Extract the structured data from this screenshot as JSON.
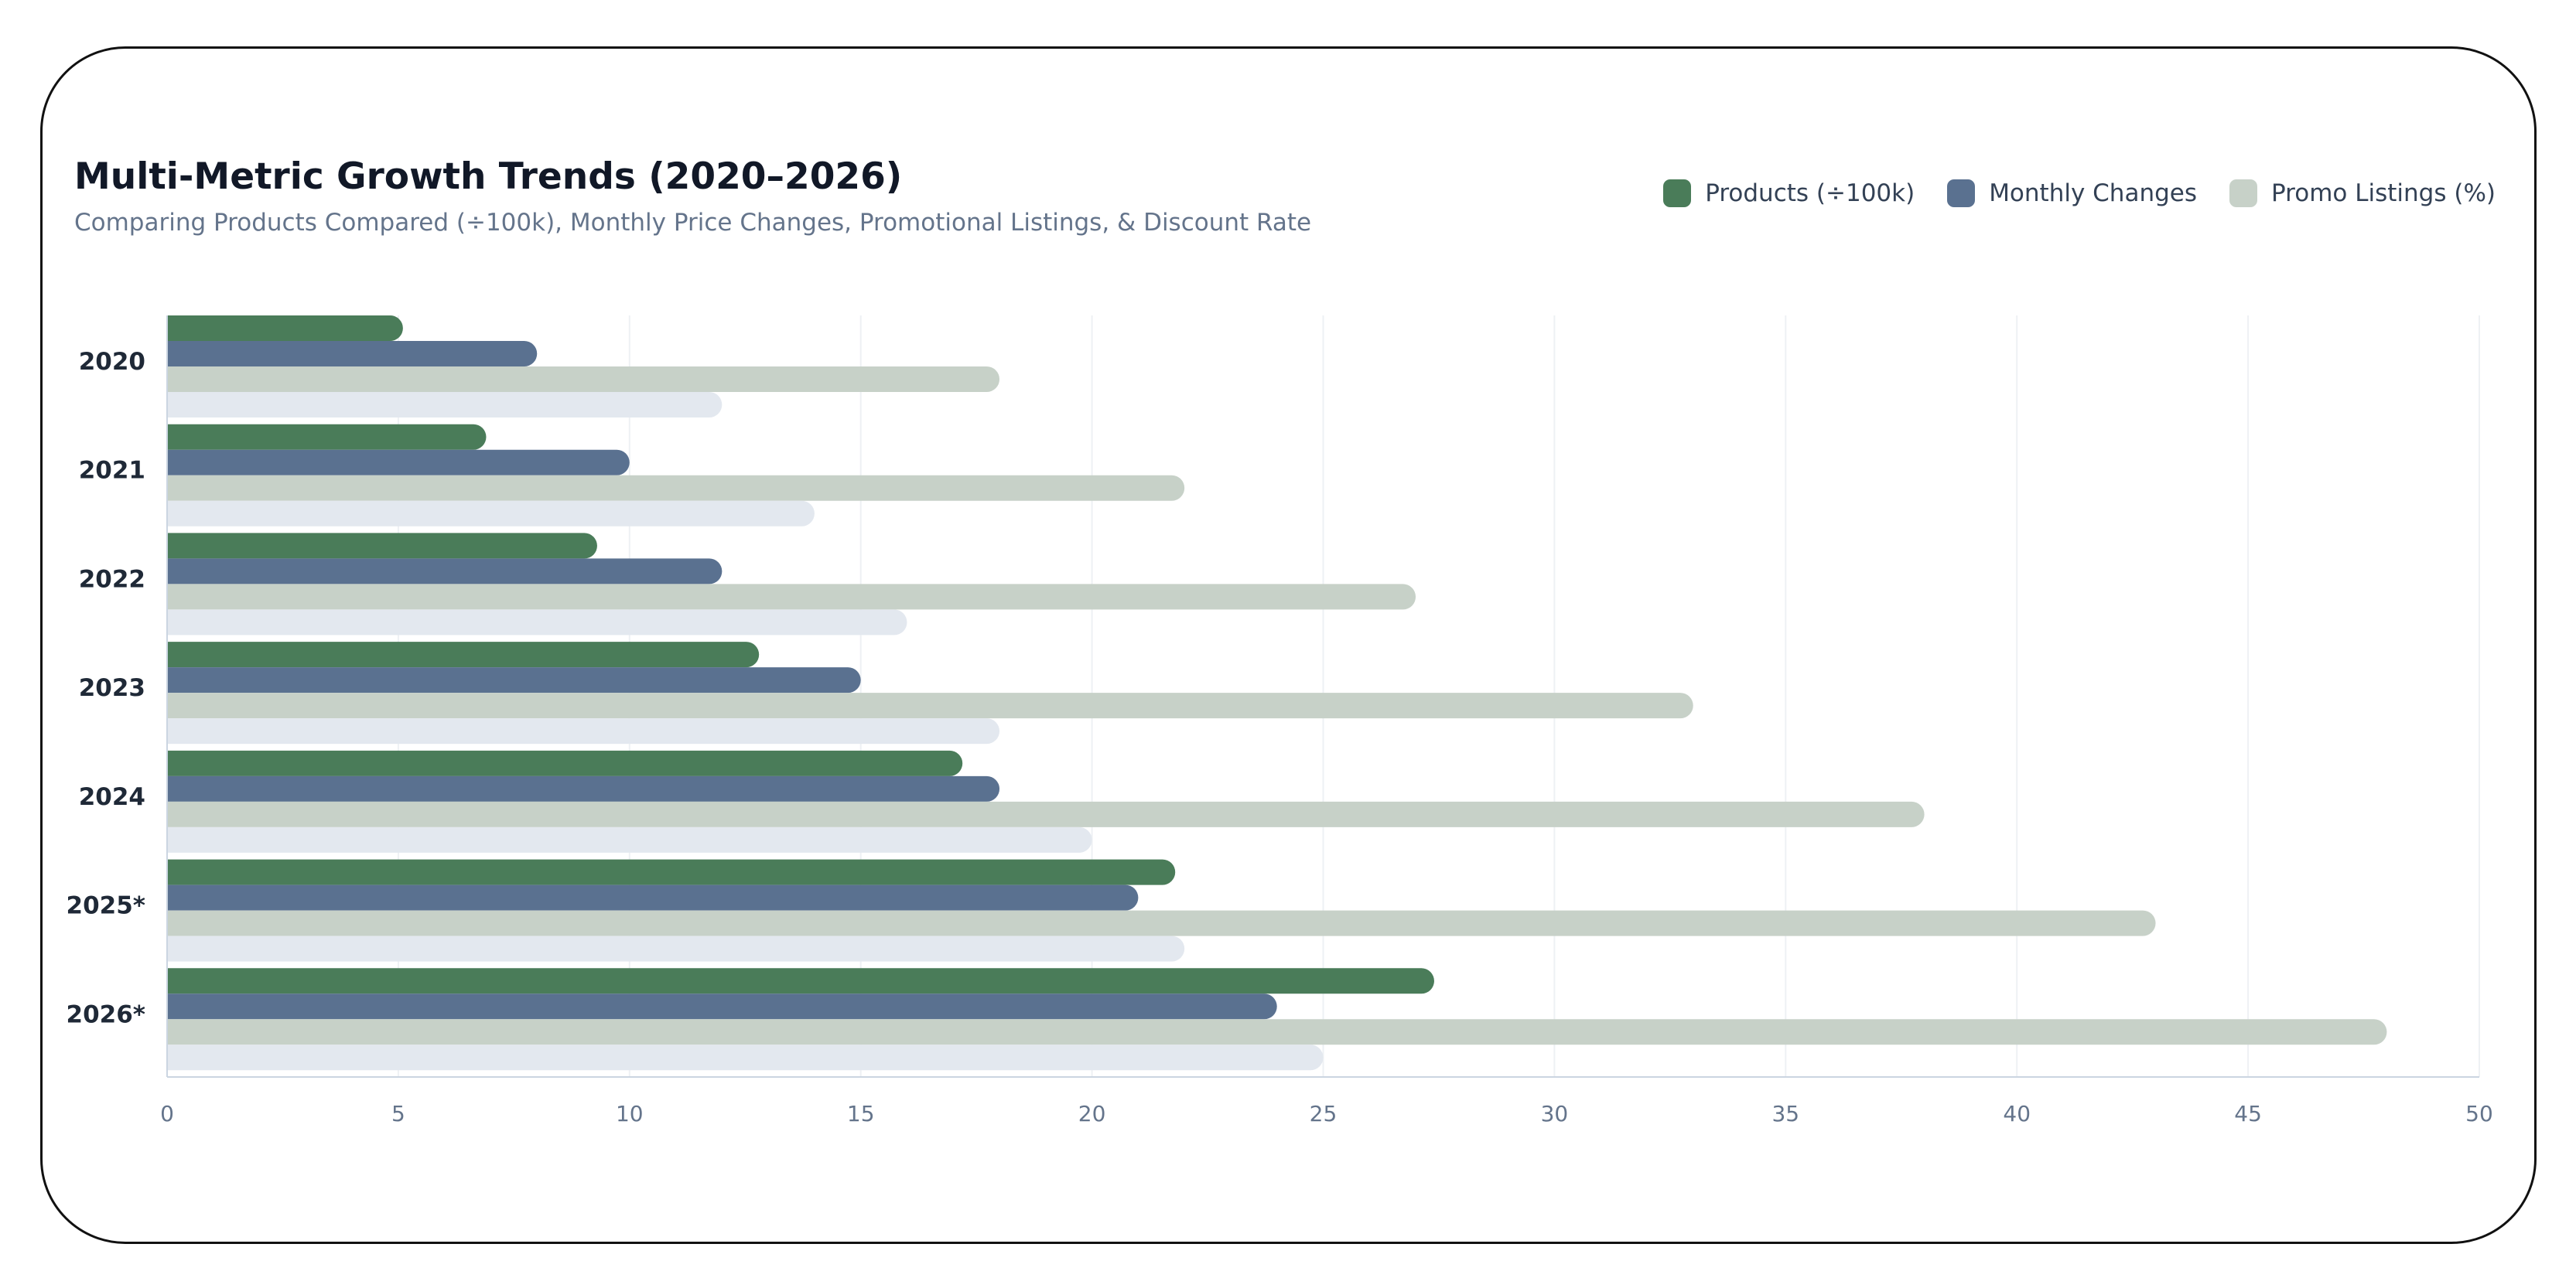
{
  "chart_data": {
    "type": "bar",
    "orientation": "horizontal",
    "title": "Multi-Metric Growth Trends (2020–2026)",
    "subtitle": "Comparing Products Compared (÷100k), Monthly Price Changes, Promotional Listings, & Discount Rate",
    "categories": [
      "2020",
      "2021",
      "2022",
      "2023",
      "2024",
      "2025*",
      "2026*"
    ],
    "category_display": [
      "2020",
      "2021",
      "2022",
      "2023",
      "2024",
      "2025*",
      "2026*"
    ],
    "series": [
      {
        "name": "Products (÷100k)",
        "color": "#4a7c59",
        "values": [
          5.1,
          6.9,
          9.3,
          12.8,
          17.2,
          21.8,
          27.4
        ]
      },
      {
        "name": "Monthly Changes",
        "color": "#5a7190",
        "values": [
          8,
          10,
          12,
          15,
          18,
          21,
          24
        ]
      },
      {
        "name": "Promo Listings (%)",
        "color": "#c7d1c8",
        "values": [
          18,
          22,
          27,
          33,
          38,
          43,
          48
        ]
      },
      {
        "color": "#e3e8ef",
        "values": [
          12,
          14,
          16,
          18,
          20,
          22,
          25
        ]
      }
    ],
    "xlim": [
      0,
      50
    ],
    "xticks": [
      "0",
      "5",
      "10",
      "15",
      "20",
      "25",
      "30",
      "35",
      "40",
      "45",
      "50"
    ],
    "grid": "vertical",
    "legend": "top-right"
  }
}
